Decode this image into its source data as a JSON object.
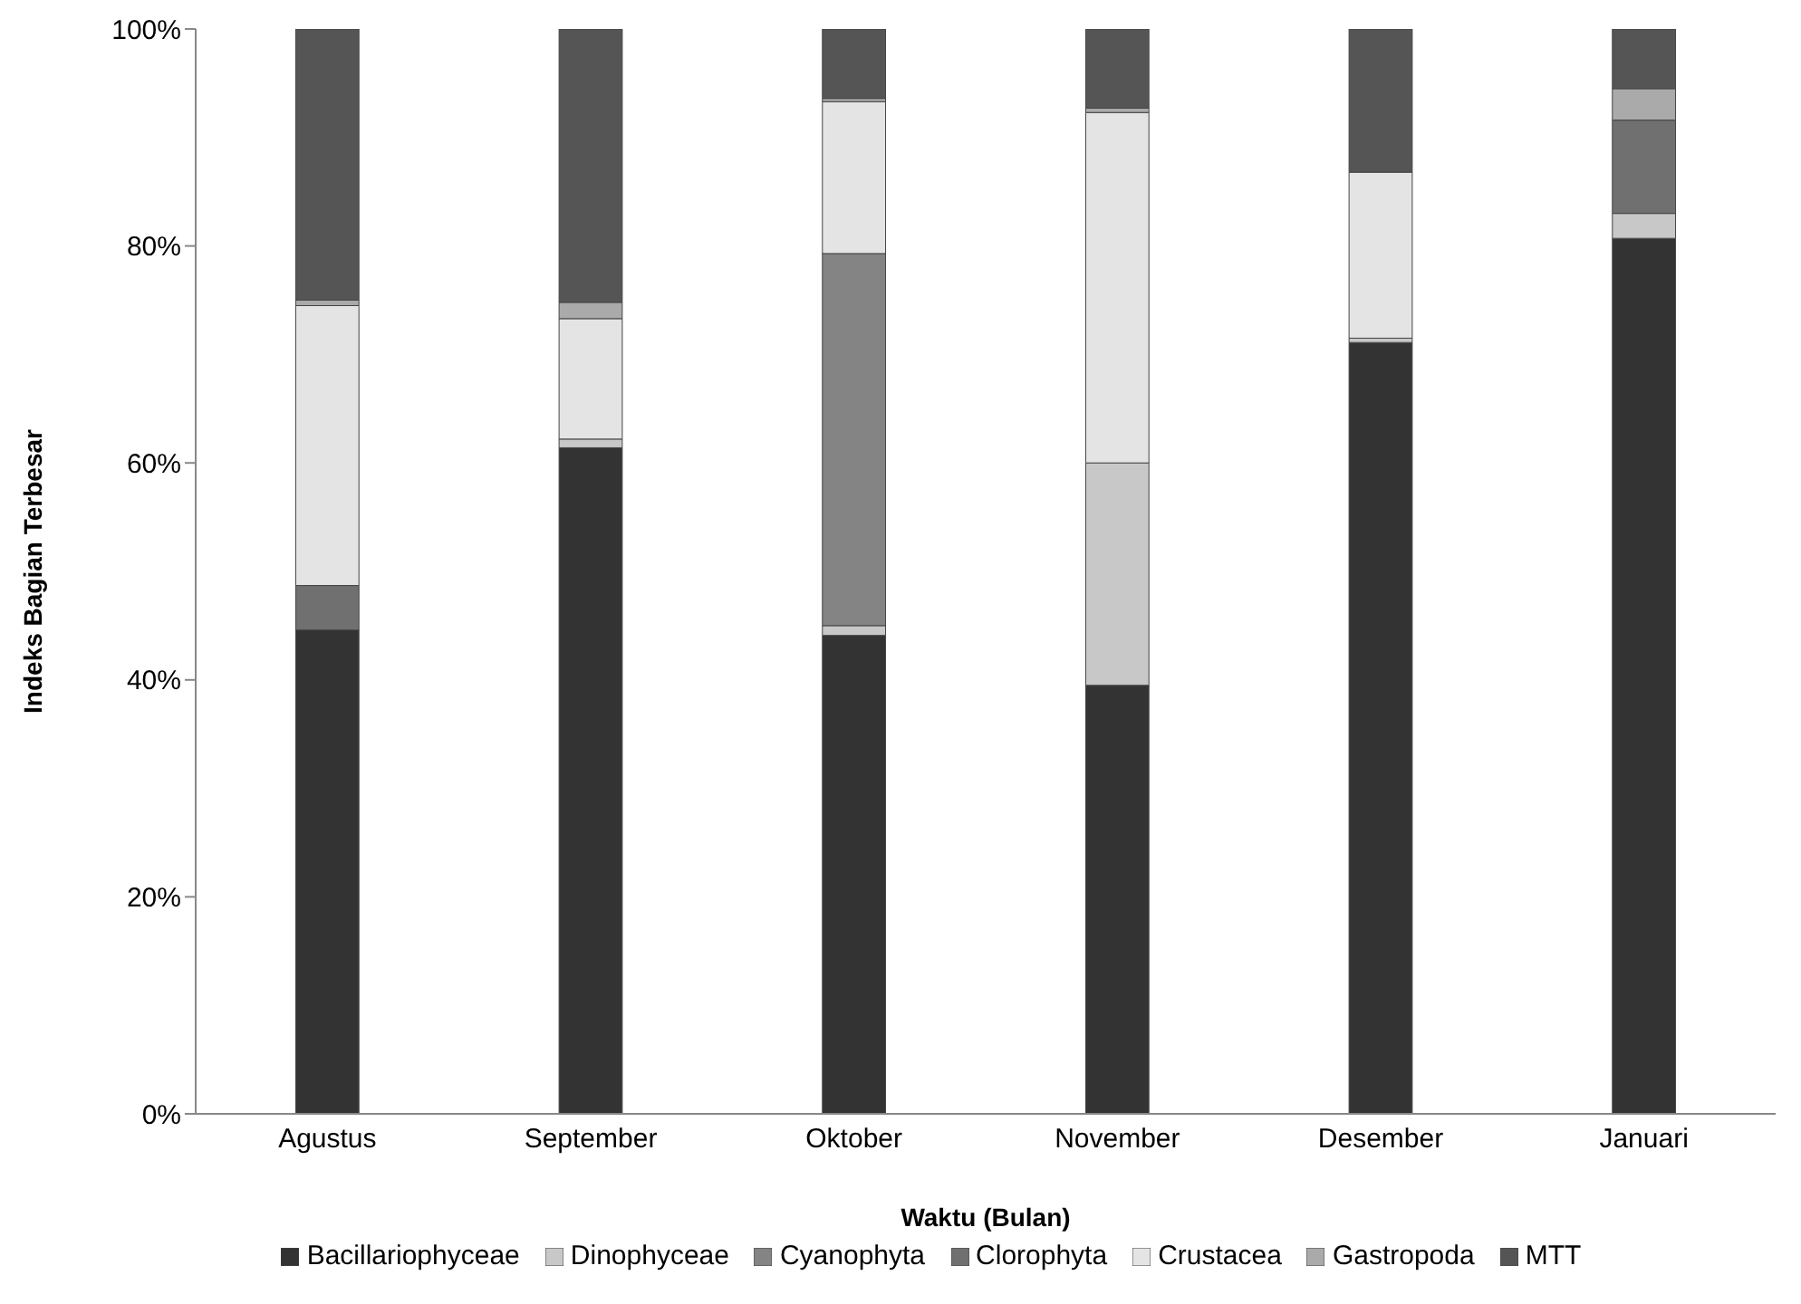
{
  "chart_data": {
    "type": "bar",
    "stacked": true,
    "xlabel": "Waktu (Bulan)",
    "ylabel": "Indeks Bagian Terbesar",
    "categories": [
      "Agustus",
      "September",
      "Oktober",
      "November",
      "Desember",
      "Januari"
    ],
    "series": [
      {
        "name": "Bacillariophyceae",
        "color": "#333333",
        "values": [
          44.6,
          61.4,
          44.1,
          39.5,
          71.1,
          80.7
        ]
      },
      {
        "name": "Dinophyceae",
        "color": "#c8c8c8",
        "values": [
          0,
          0.8,
          0.9,
          20.5,
          0.4,
          2.3
        ]
      },
      {
        "name": "Cyanophyta",
        "color": "#848484",
        "values": [
          0,
          0,
          34.3,
          0,
          0,
          0
        ]
      },
      {
        "name": "Clorophyta",
        "color": "#707070",
        "values": [
          4.1,
          0,
          0,
          0,
          0,
          8.6
        ]
      },
      {
        "name": "Crustacea",
        "color": "#e4e4e4",
        "values": [
          25.8,
          11.1,
          14.0,
          32.3,
          15.3,
          0
        ]
      },
      {
        "name": "Gastropoda",
        "color": "#aaaaaa",
        "values": [
          0.5,
          1.5,
          0.3,
          0.4,
          0,
          2.9
        ]
      },
      {
        "name": "MTT",
        "color": "#555555",
        "values": [
          25.0,
          25.2,
          6.4,
          7.3,
          13.2,
          5.5
        ]
      }
    ],
    "ylim": [
      0,
      100
    ],
    "yticks": [
      {
        "value": 0,
        "label": "0%"
      },
      {
        "value": 20,
        "label": "20%"
      },
      {
        "value": 40,
        "label": "40%"
      },
      {
        "value": 60,
        "label": "60%"
      },
      {
        "value": 80,
        "label": "80%"
      },
      {
        "value": 100,
        "label": "100%"
      }
    ],
    "grid": false,
    "legend": "bottom"
  }
}
